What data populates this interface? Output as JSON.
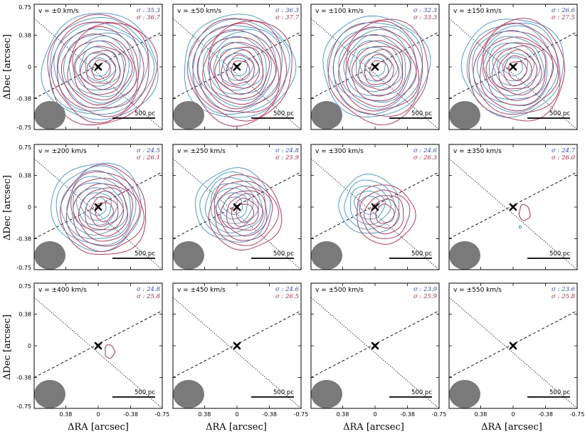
{
  "chart_data": {
    "type": "contour-grid",
    "title": "",
    "xlabel": "ΔRA [arcsec]",
    "ylabel": "ΔDec [arcsec]",
    "xlim": [
      0.75,
      -0.75
    ],
    "ylim": [
      -0.75,
      0.75
    ],
    "xticks": [
      "0.38",
      "0",
      "-0.38",
      "-0.75"
    ],
    "yticks": [
      "0.75",
      "0.38",
      "0",
      "-0.38",
      "-0.75"
    ],
    "scalebar_label": "500 pc",
    "colors": {
      "blue": "#3399dd",
      "red": "#cc2244",
      "beam": "#7a7a7a",
      "marker": "#000000"
    },
    "panels": [
      {
        "v_label": "v = ±0 km/s",
        "sigma_blue": "σ : 35.3",
        "sigma_red": "σ : 36.7",
        "strength": 1.0
      },
      {
        "v_label": "v = ±50 km/s",
        "sigma_blue": "σ : 36.3",
        "sigma_red": "σ : 37.7",
        "strength": 0.95
      },
      {
        "v_label": "v = ±100 km/s",
        "sigma_blue": "σ : 32.3",
        "sigma_red": "σ : 33.3",
        "strength": 0.9
      },
      {
        "v_label": "v = ±150 km/s",
        "sigma_blue": "σ : 26.6",
        "sigma_red": "σ : 27.5",
        "strength": 0.85
      },
      {
        "v_label": "v = ±200 km/s",
        "sigma_blue": "σ : 24.5",
        "sigma_red": "σ : 26.1",
        "strength": 0.7
      },
      {
        "v_label": "v = ±250 km/s",
        "sigma_blue": "σ : 24.8",
        "sigma_red": "σ : 25.9",
        "strength": 0.5
      },
      {
        "v_label": "v = ±300 km/s",
        "sigma_blue": "σ : 24.6",
        "sigma_red": "σ : 26.3",
        "strength": 0.3
      },
      {
        "v_label": "v = ±350 km/s",
        "sigma_blue": "σ : 24.7",
        "sigma_red": "σ : 26.0",
        "strength": 0.1
      },
      {
        "v_label": "v = ±400 km/s",
        "sigma_blue": "σ : 24.8",
        "sigma_red": "σ : 25.8",
        "strength": 0.05
      },
      {
        "v_label": "v = ±450 km/s",
        "sigma_blue": "σ : 24.6",
        "sigma_red": "σ : 26.5",
        "strength": 0
      },
      {
        "v_label": "v = ±500 km/s",
        "sigma_blue": "σ : 23.9",
        "sigma_red": "σ : 25.9",
        "strength": 0
      },
      {
        "v_label": "v = ±550 km/s",
        "sigma_blue": "σ : 23.6",
        "sigma_red": "σ : 25.8",
        "strength": 0
      }
    ]
  }
}
